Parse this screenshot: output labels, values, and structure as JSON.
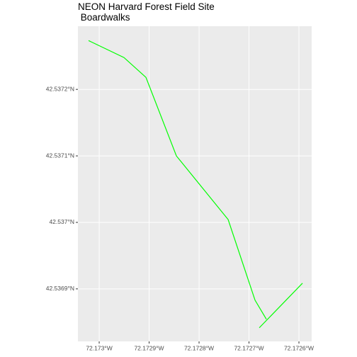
{
  "chart_data": {
    "type": "line",
    "title": "NEON Harvard Forest Field Site\n Boardwalks",
    "x": [
      -72.1730213,
      -72.1729504,
      -72.1729064,
      -72.1728454,
      -72.1727418,
      -72.1726879,
      -72.1726652,
      null,
      -72.1726794,
      -72.1725929
    ],
    "series": [
      {
        "color": "#00ff00",
        "values": [
          42.5372734,
          42.5372479,
          42.5372181,
          42.5371,
          42.5370043,
          42.536883,
          42.5368543,
          null,
          42.5368415,
          42.5369085
        ]
      }
    ],
    "xlim": [
      -72.1730426,
      -72.1725745
    ],
    "ylim": [
      42.536821,
      42.537295
    ],
    "xticks": [
      {
        "value": -72.173,
        "label": "72.173°W"
      },
      {
        "value": -72.1729,
        "label": "72.1729°W"
      },
      {
        "value": -72.1728,
        "label": "72.1728°W"
      },
      {
        "value": -72.1727,
        "label": "72.1727°W"
      },
      {
        "value": -72.1726,
        "label": "72.1726°W"
      }
    ],
    "yticks": [
      {
        "value": 42.5369,
        "label": "42.5369°N"
      },
      {
        "value": 42.537,
        "label": "42.537°N"
      },
      {
        "value": 42.5371,
        "label": "42.5371°N"
      },
      {
        "value": 42.5372,
        "label": "42.5372°N"
      }
    ],
    "grid": true
  }
}
